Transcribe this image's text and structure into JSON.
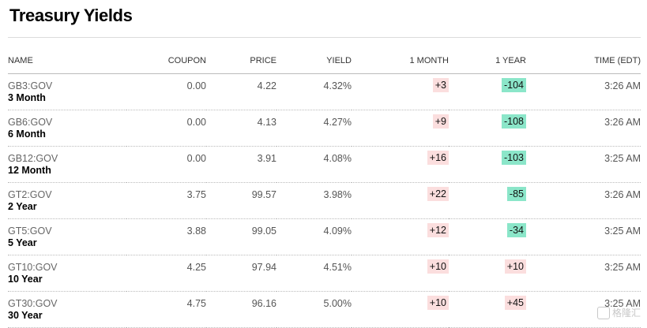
{
  "page": {
    "title": "Treasury Yields"
  },
  "table": {
    "columns": [
      "NAME",
      "COUPON",
      "PRICE",
      "YIELD",
      "1 MONTH",
      "1 YEAR",
      "TIME (EDT)"
    ],
    "rows": [
      {
        "ticker": "GB3:GOV",
        "term": "3 Month",
        "coupon": "0.00",
        "price": "4.22",
        "yield": "4.32%",
        "month": "+3",
        "month_dir": "up",
        "year": "-104",
        "year_dir": "down",
        "time": "3:26 AM"
      },
      {
        "ticker": "GB6:GOV",
        "term": "6 Month",
        "coupon": "0.00",
        "price": "4.13",
        "yield": "4.27%",
        "month": "+9",
        "month_dir": "up",
        "year": "-108",
        "year_dir": "down",
        "time": "3:26 AM"
      },
      {
        "ticker": "GB12:GOV",
        "term": "12 Month",
        "coupon": "0.00",
        "price": "3.91",
        "yield": "4.08%",
        "month": "+16",
        "month_dir": "up",
        "year": "-103",
        "year_dir": "down",
        "time": "3:25 AM"
      },
      {
        "ticker": "GT2:GOV",
        "term": "2 Year",
        "coupon": "3.75",
        "price": "99.57",
        "yield": "3.98%",
        "month": "+22",
        "month_dir": "up",
        "year": "-85",
        "year_dir": "down",
        "time": "3:26 AM"
      },
      {
        "ticker": "GT5:GOV",
        "term": "5 Year",
        "coupon": "3.88",
        "price": "99.05",
        "yield": "4.09%",
        "month": "+12",
        "month_dir": "up",
        "year": "-34",
        "year_dir": "down",
        "time": "3:25 AM"
      },
      {
        "ticker": "GT10:GOV",
        "term": "10 Year",
        "coupon": "4.25",
        "price": "97.94",
        "yield": "4.51%",
        "month": "+10",
        "month_dir": "up",
        "year": "+10",
        "year_dir": "up",
        "time": "3:25 AM"
      },
      {
        "ticker": "GT30:GOV",
        "term": "30 Year",
        "coupon": "4.75",
        "price": "96.16",
        "yield": "5.00%",
        "month": "+10",
        "month_dir": "up",
        "year": "+45",
        "year_dir": "up",
        "time": "3:25 AM"
      }
    ]
  },
  "colors": {
    "up_bg": "#fbdede",
    "down_bg": "#8be6c9"
  },
  "watermark": {
    "text": "格隆汇"
  }
}
